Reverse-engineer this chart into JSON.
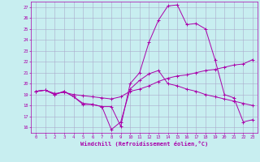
{
  "background_color": "#c8eef0",
  "line_color": "#aa00aa",
  "grid_color": "#aaaacc",
  "xlabel": "Windchill (Refroidissement éolien,°C)",
  "xlabel_color": "#aa00aa",
  "tick_color": "#aa00aa",
  "ylim": [
    15.5,
    27.5
  ],
  "xlim": [
    -0.5,
    23.5
  ],
  "yticks": [
    16,
    17,
    18,
    19,
    20,
    21,
    22,
    23,
    24,
    25,
    26,
    27
  ],
  "xticks": [
    0,
    1,
    2,
    3,
    4,
    5,
    6,
    7,
    8,
    9,
    10,
    11,
    12,
    13,
    14,
    15,
    16,
    17,
    18,
    19,
    20,
    21,
    22,
    23
  ],
  "series": [
    {
      "x": [
        0,
        1,
        2,
        3,
        4,
        5,
        6,
        7,
        8,
        9,
        10,
        11,
        12,
        13,
        14,
        15,
        16,
        17,
        18,
        19,
        20,
        21,
        22,
        23
      ],
      "y": [
        19.3,
        19.4,
        19.0,
        19.3,
        18.8,
        18.1,
        18.1,
        17.9,
        17.9,
        16.1,
        20.0,
        21.0,
        23.8,
        25.8,
        27.1,
        27.2,
        25.4,
        25.5,
        25.0,
        22.2,
        19.0,
        18.7,
        16.5,
        16.7
      ]
    },
    {
      "x": [
        0,
        1,
        2,
        3,
        4,
        5,
        6,
        7,
        8,
        9,
        10,
        11,
        12,
        13,
        14,
        15,
        16,
        17,
        18,
        19,
        20,
        21,
        22,
        23
      ],
      "y": [
        19.3,
        19.4,
        19.0,
        19.3,
        18.8,
        18.2,
        18.1,
        17.9,
        15.8,
        16.5,
        19.5,
        20.3,
        20.9,
        21.2,
        20.0,
        19.8,
        19.5,
        19.3,
        19.0,
        18.8,
        18.6,
        18.4,
        18.2,
        18.0
      ]
    },
    {
      "x": [
        0,
        1,
        2,
        3,
        4,
        5,
        6,
        7,
        8,
        9,
        10,
        11,
        12,
        13,
        14,
        15,
        16,
        17,
        18,
        19,
        20,
        21,
        22,
        23
      ],
      "y": [
        19.3,
        19.4,
        19.1,
        19.2,
        19.0,
        18.9,
        18.8,
        18.7,
        18.6,
        18.8,
        19.3,
        19.5,
        19.8,
        20.2,
        20.5,
        20.7,
        20.8,
        21.0,
        21.2,
        21.3,
        21.5,
        21.7,
        21.8,
        22.2
      ]
    }
  ]
}
